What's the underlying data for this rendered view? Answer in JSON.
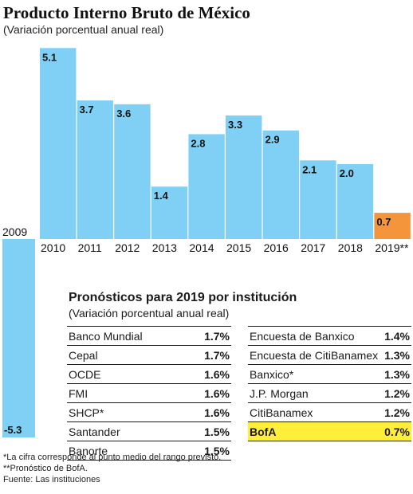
{
  "title": "Producto Interno Bruto de México",
  "subtitle": "(Variación porcentual anual real)",
  "chart_data": {
    "type": "bar",
    "title": "Producto Interno Bruto de México",
    "subtitle": "(Variación porcentual anual real)",
    "categories": [
      "2009",
      "2010",
      "2011",
      "2012",
      "2013",
      "2014",
      "2015",
      "2016",
      "2017",
      "2018",
      "2019**"
    ],
    "values": [
      -5.3,
      5.1,
      3.7,
      3.6,
      1.4,
      2.8,
      3.3,
      2.9,
      2.1,
      2.0,
      0.7
    ],
    "value_labels": [
      "-5.3",
      "5.1",
      "3.7",
      "3.6",
      "1.4",
      "2.8",
      "3.3",
      "2.9",
      "2.1",
      "2.0",
      "0.7"
    ],
    "highlight_category": "2019**",
    "colors": {
      "bar": "#7fd0f4",
      "highlight": "#f4953c"
    }
  },
  "forecast": {
    "title": "Pronósticos para 2019 por institución",
    "subtitle": "(Variación porcentual anual real)",
    "left": [
      {
        "name": "Banco Mundial",
        "value": "1.7%"
      },
      {
        "name": "Cepal",
        "value": "1.7%"
      },
      {
        "name": "OCDE",
        "value": "1.6%"
      },
      {
        "name": "FMI",
        "value": "1.6%"
      },
      {
        "name": "SHCP*",
        "value": "1.6%"
      },
      {
        "name": "Santander",
        "value": "1.5%"
      },
      {
        "name": "Banorte",
        "value": "1.5%"
      }
    ],
    "right": [
      {
        "name": "Encuesta de Banxico",
        "value": "1.4%"
      },
      {
        "name": "Encuesta de CitiBanamex",
        "value": "1.3%"
      },
      {
        "name": "Banxico*",
        "value": "1.3%"
      },
      {
        "name": "J.P. Morgan",
        "value": "1.2%"
      },
      {
        "name": "CitiBanamex",
        "value": "1.2%"
      },
      {
        "name": "BofA",
        "value": "0.7%"
      }
    ],
    "highlight_color": "#ffef3a"
  },
  "notes": [
    "*La cifra corresponde al punto medio del rango previsto.",
    "**Pronóstico de BofA.",
    "Fuente: Las instituciones"
  ]
}
